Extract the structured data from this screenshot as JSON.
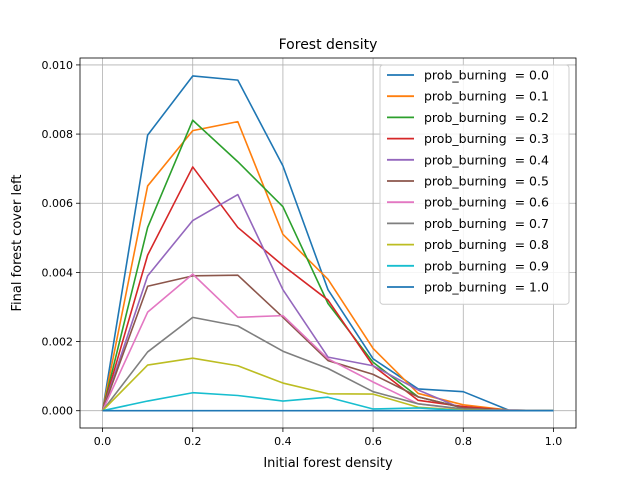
{
  "chart_data": {
    "type": "line",
    "title": "Forest density",
    "xlabel": "Initial forest density",
    "ylabel": "Final forest cover left",
    "xlim": [
      -0.05,
      1.05
    ],
    "ylim": [
      -0.0005,
      0.0102
    ],
    "grid": true,
    "legend_position": "top-right",
    "x_ticks": [
      0.0,
      0.2,
      0.4,
      0.6,
      0.8,
      1.0
    ],
    "x_tick_labels": [
      "0.0",
      "0.2",
      "0.4",
      "0.6",
      "0.8",
      "1.0"
    ],
    "y_ticks": [
      0.0,
      0.002,
      0.004,
      0.006,
      0.008,
      0.01
    ],
    "y_tick_labels": [
      "0.000",
      "0.002",
      "0.004",
      "0.006",
      "0.008",
      "0.010"
    ],
    "x": [
      0.0,
      0.1,
      0.2,
      0.3,
      0.4,
      0.5,
      0.6,
      0.7,
      0.8,
      0.9,
      1.0
    ],
    "series": [
      {
        "name": "prob_burning  = 0.0",
        "color": "#1f77b4",
        "values": [
          0.0,
          0.00797,
          0.00968,
          0.00956,
          0.00708,
          0.0035,
          0.0015,
          0.00063,
          0.00055,
          2e-05,
          0.0
        ]
      },
      {
        "name": "prob_burning  = 0.1",
        "color": "#ff7f0e",
        "values": [
          0.0,
          0.0065,
          0.0081,
          0.00836,
          0.0051,
          0.0038,
          0.0018,
          0.0005,
          0.00017,
          2e-05,
          0.0
        ]
      },
      {
        "name": "prob_burning  = 0.2",
        "color": "#2ca02c",
        "values": [
          0.0,
          0.0053,
          0.0084,
          0.0072,
          0.0059,
          0.0031,
          0.0014,
          0.0004,
          8e-05,
          2e-05,
          0.0
        ]
      },
      {
        "name": "prob_burning  = 0.3",
        "color": "#d62728",
        "values": [
          0.0,
          0.0045,
          0.00705,
          0.0053,
          0.0042,
          0.0032,
          0.0013,
          0.0003,
          0.00012,
          1e-05,
          0.0
        ]
      },
      {
        "name": "prob_burning  = 0.4",
        "color": "#9467bd",
        "values": [
          0.0,
          0.0039,
          0.0055,
          0.00625,
          0.0035,
          0.00155,
          0.0013,
          0.0006,
          5e-05,
          2e-05,
          0.0
        ]
      },
      {
        "name": "prob_burning  = 0.5",
        "color": "#8c564b",
        "values": [
          0.0,
          0.0036,
          0.0039,
          0.00392,
          0.0027,
          0.00145,
          0.00105,
          0.0004,
          8e-05,
          1e-05,
          0.0
        ]
      },
      {
        "name": "prob_burning  = 0.6",
        "color": "#e377c2",
        "values": [
          0.0,
          0.00285,
          0.00395,
          0.0027,
          0.00275,
          0.0015,
          0.00083,
          0.0002,
          4e-05,
          1e-05,
          0.0
        ]
      },
      {
        "name": "prob_burning  = 0.7",
        "color": "#7f7f7f",
        "values": [
          0.0,
          0.0017,
          0.0027,
          0.00245,
          0.00172,
          0.00122,
          0.00055,
          0.0002,
          5e-05,
          0.0,
          0.0
        ]
      },
      {
        "name": "prob_burning  = 0.8",
        "color": "#bcbd22",
        "values": [
          0.0,
          0.00132,
          0.00152,
          0.0013,
          0.0008,
          0.00049,
          0.00048,
          0.0001,
          2e-05,
          0.0,
          0.0
        ]
      },
      {
        "name": "prob_burning  = 0.9",
        "color": "#17becf",
        "values": [
          0.0,
          0.00028,
          0.00052,
          0.00044,
          0.00028,
          0.00039,
          5e-05,
          8e-05,
          0.0,
          0.0,
          0.0
        ]
      },
      {
        "name": "prob_burning  = 1.0",
        "color": "#1f77b4",
        "values": [
          0.0,
          0.0,
          0.0,
          0.0,
          0.0,
          0.0,
          0.0,
          0.0,
          0.0,
          0.0,
          0.0
        ]
      }
    ]
  }
}
